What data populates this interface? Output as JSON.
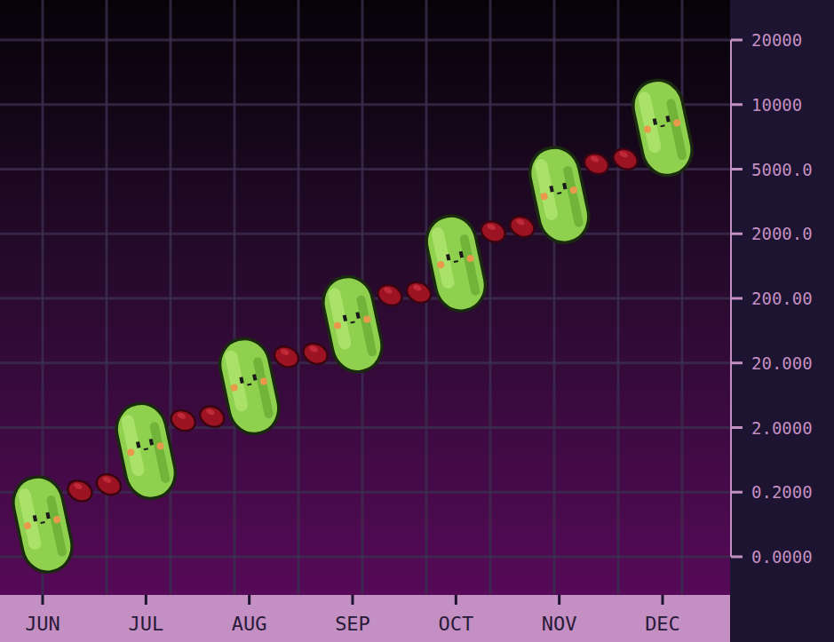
{
  "chart_data": {
    "type": "line",
    "categories": [
      "JUN",
      "JUL",
      "AUG",
      "SEP",
      "OCT",
      "NOV",
      "DEC"
    ],
    "values": [
      0.1,
      1.35,
      13.5,
      128,
      1175,
      3800,
      8200
    ],
    "color": "#8fd14f",
    "marker": "pickle",
    "ylim": [
      0,
      20000
    ],
    "yticks": [
      {
        "value": 0,
        "label": "0.0000"
      },
      {
        "value": 0.2,
        "label": "0.2000"
      },
      {
        "value": 2,
        "label": "2.0000"
      },
      {
        "value": 20,
        "label": "20.000"
      },
      {
        "value": 200,
        "label": "200.00"
      },
      {
        "value": 2000,
        "label": "2000.0"
      },
      {
        "value": 5000,
        "label": "5000.0"
      },
      10000,
      20000
    ],
    "grid": true
  }
}
